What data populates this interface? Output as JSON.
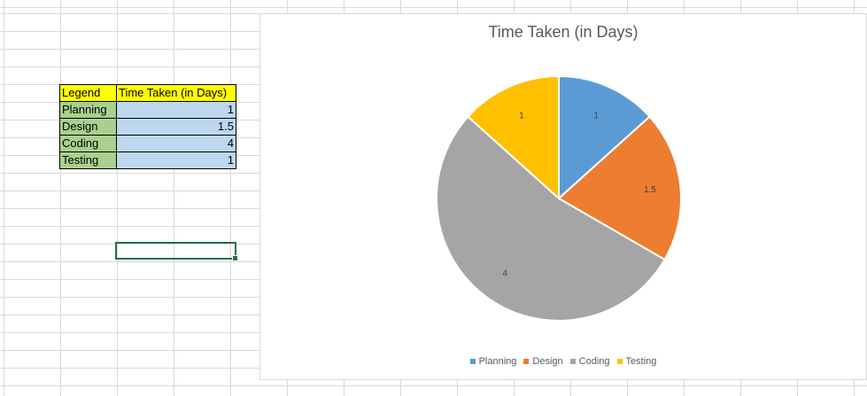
{
  "table": {
    "header": [
      "Legend",
      "Time Taken (in Days)"
    ],
    "rows": [
      {
        "label": "Planning",
        "value": "1"
      },
      {
        "label": "Design",
        "value": "1.5"
      },
      {
        "label": "Coding",
        "value": "4"
      },
      {
        "label": "Testing",
        "value": "1"
      }
    ]
  },
  "chart_data": {
    "type": "pie",
    "title": "Time Taken (in Days)",
    "categories": [
      "Planning",
      "Design",
      "Coding",
      "Testing"
    ],
    "values": [
      1,
      1.5,
      4,
      1
    ],
    "data_labels": [
      "1",
      "1.5",
      "4",
      "1"
    ],
    "colors": [
      "#5b9bd5",
      "#ed7d31",
      "#a5a5a5",
      "#ffc000"
    ],
    "legend_position": "bottom"
  }
}
